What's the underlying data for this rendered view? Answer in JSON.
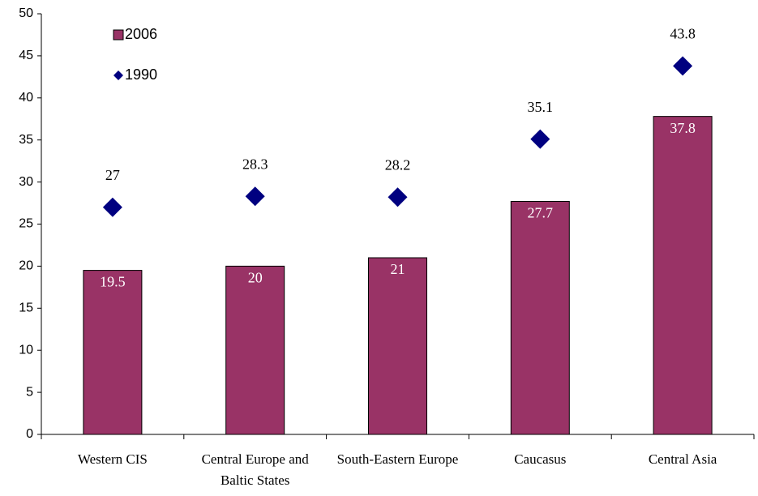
{
  "chart_data": {
    "type": "combo",
    "categories": [
      "Western CIS",
      "Central Europe and Baltic States",
      "South-Eastern Europe",
      "Caucasus",
      "Central Asia"
    ],
    "series": [
      {
        "name": "2006",
        "type": "bar",
        "color": "#993366",
        "values": [
          19.5,
          20,
          21,
          27.7,
          37.8
        ]
      },
      {
        "name": "1990",
        "type": "marker",
        "color": "#000080",
        "values": [
          27,
          28.3,
          28.2,
          35.1,
          43.8
        ]
      }
    ],
    "ylim": [
      0,
      50
    ],
    "yticks": [
      0,
      5,
      10,
      15,
      20,
      25,
      30,
      35,
      40,
      45,
      50
    ]
  }
}
